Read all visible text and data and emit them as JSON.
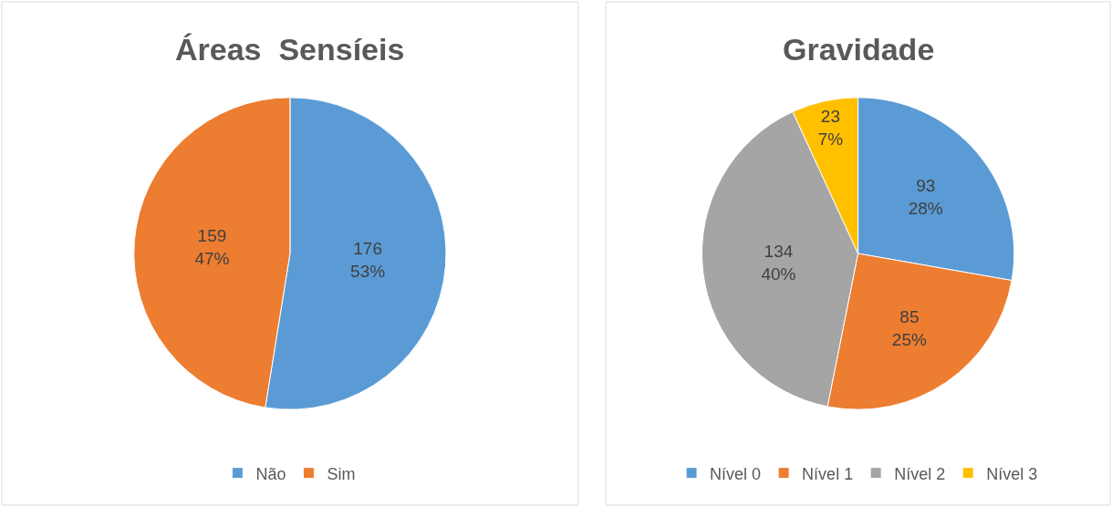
{
  "chart_data": [
    {
      "type": "pie",
      "title": "Áreas  Sensíeis",
      "categories": [
        "Não",
        "Sim"
      ],
      "values": [
        176,
        159
      ],
      "colors": [
        "#5b9bd5",
        "#ed7d31"
      ],
      "value_labels": [
        "176\n53%",
        "159\n47%"
      ],
      "legend": "bottom"
    },
    {
      "type": "pie",
      "title": "Gravidade",
      "categories": [
        "Nível 0",
        "Nível 1",
        "Nível 2",
        "Nível 3"
      ],
      "values": [
        93,
        85,
        134,
        23
      ],
      "colors": [
        "#5b9bd5",
        "#ed7d31",
        "#a5a5a5",
        "#ffc000"
      ],
      "value_labels": [
        "93\n28%",
        "85\n25%",
        "134\n40%",
        "23\n7%"
      ],
      "legend": "bottom"
    }
  ]
}
